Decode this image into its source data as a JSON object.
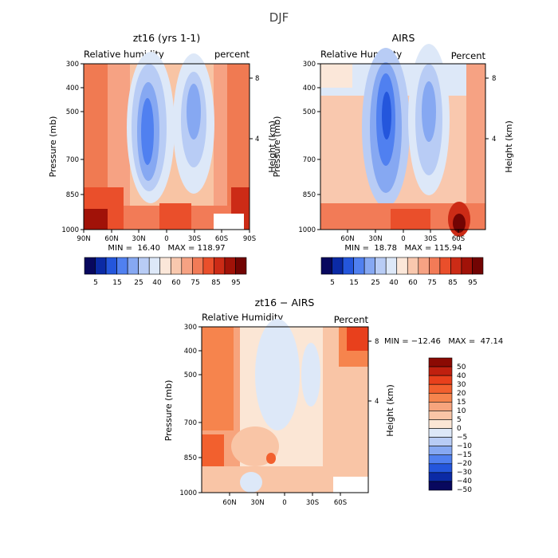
{
  "figure_title": "DJF",
  "chart_data": [
    {
      "type": "contour",
      "title": "zt16 (yrs 1-1)",
      "variable": "Relative humidity",
      "units": "percent",
      "ylabel": "Pressure (mb)",
      "y2label": "Height (km)",
      "xlim": [
        90,
        -90
      ],
      "ylim": [
        1000,
        300
      ],
      "y_ticks": [
        "300",
        "400",
        "500",
        "700",
        "850",
        "1000"
      ],
      "x_ticks": [
        "90N",
        "60N",
        "30N",
        "0",
        "30S",
        "60S",
        "90S"
      ],
      "y2_ticks": [
        "8",
        "4"
      ],
      "stats": "MIN =  16.40   MAX = 118.97",
      "colorbar_labels": [
        "5",
        "15",
        "25",
        "40",
        "60",
        "75",
        "85",
        "95"
      ]
    },
    {
      "type": "contour",
      "title": "AIRS",
      "variable": "Relative Humidity",
      "units": "Percent",
      "ylabel": "Pressure (mb)",
      "y2label": "Height (km)",
      "xlim": [
        90,
        -90
      ],
      "ylim": [
        1000,
        300
      ],
      "y_ticks": [
        "300",
        "400",
        "500",
        "700",
        "850",
        "1000"
      ],
      "x_ticks": [
        "60N",
        "30N",
        "0",
        "30S",
        "60S"
      ],
      "y2_ticks": [
        "8",
        "4"
      ],
      "stats": "MIN =  18.78   MAX = 115.94",
      "colorbar_labels": [
        "5",
        "15",
        "25",
        "40",
        "60",
        "75",
        "85",
        "95"
      ]
    },
    {
      "type": "contour",
      "title": "zt16 − AIRS",
      "variable": "Relative Humidity",
      "units": "Percent",
      "ylabel": "Pressure (mb)",
      "y2label": "Height (km)",
      "xlim": [
        90,
        -90
      ],
      "ylim": [
        1000,
        300
      ],
      "y_ticks": [
        "300",
        "400",
        "500",
        "700",
        "850",
        "1000"
      ],
      "x_ticks": [
        "60N",
        "30N",
        "0",
        "30S",
        "60S"
      ],
      "y2_ticks": [
        "8",
        "4"
      ],
      "stats": "MIN = −12.46   MAX =  47.14",
      "colorbar_labels": [
        "50",
        "40",
        "30",
        "20",
        "15",
        "10",
        "5",
        "0",
        "−5",
        "−10",
        "−15",
        "−20",
        "−30",
        "−40",
        "−50"
      ]
    }
  ],
  "palettes": {
    "absolute": [
      "#08085e",
      "#0b2aa5",
      "#2456dc",
      "#5080f0",
      "#86a8f2",
      "#b8ccf5",
      "#dde8f8",
      "#fbe7d9",
      "#f9c8ae",
      "#f6a283",
      "#f27b57",
      "#ea4f2b",
      "#cc2b16",
      "#a11208",
      "#720403"
    ],
    "diff": [
      "#8b0a03",
      "#c0200f",
      "#e8401c",
      "#f2602e",
      "#f6844d",
      "#f7a47d",
      "#f9c5a6",
      "#fbe6d5",
      "#dde8f8",
      "#b8ccf5",
      "#86a8f2",
      "#5080f0",
      "#2456dc",
      "#0b2aa5",
      "#08085e"
    ]
  }
}
